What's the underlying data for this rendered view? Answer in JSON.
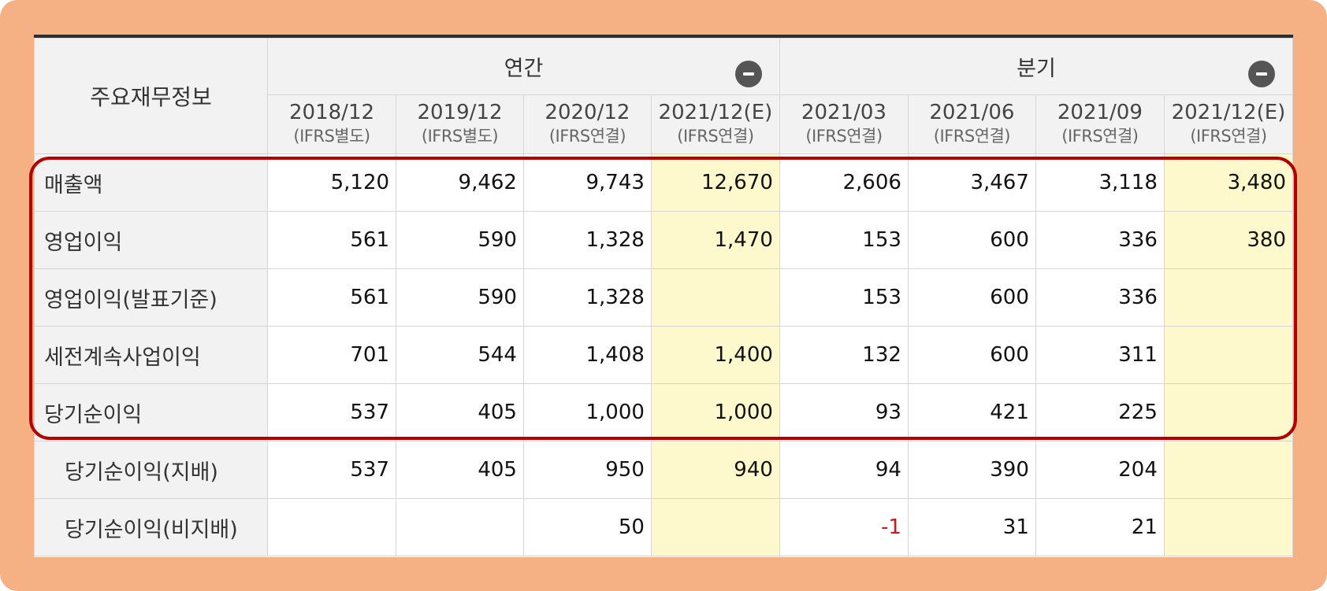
{
  "table": {
    "corner_label": "주요재무정보",
    "groups": [
      {
        "label": "연간"
      },
      {
        "label": "분기"
      }
    ],
    "periods": [
      {
        "period": "2018/12",
        "basis": "(IFRS별도)"
      },
      {
        "period": "2019/12",
        "basis": "(IFRS별도)"
      },
      {
        "period": "2020/12",
        "basis": "(IFRS연결)"
      },
      {
        "period": "2021/12(E)",
        "basis": "(IFRS연결)"
      },
      {
        "period": "2021/03",
        "basis": "(IFRS연결)"
      },
      {
        "period": "2021/06",
        "basis": "(IFRS연결)"
      },
      {
        "period": "2021/09",
        "basis": "(IFRS연결)"
      },
      {
        "period": "2021/12(E)",
        "basis": "(IFRS연결)"
      }
    ],
    "rows": [
      {
        "label": "매출액",
        "values": [
          "5,120",
          "9,462",
          "9,743",
          "12,670",
          "2,606",
          "3,467",
          "3,118",
          "3,480"
        ]
      },
      {
        "label": "영업이익",
        "values": [
          "561",
          "590",
          "1,328",
          "1,470",
          "153",
          "600",
          "336",
          "380"
        ]
      },
      {
        "label": "영업이익(발표기준)",
        "values": [
          "561",
          "590",
          "1,328",
          "",
          "153",
          "600",
          "336",
          ""
        ]
      },
      {
        "label": "세전계속사업이익",
        "values": [
          "701",
          "544",
          "1,408",
          "1,400",
          "132",
          "600",
          "311",
          ""
        ]
      },
      {
        "label": "당기순이익",
        "values": [
          "537",
          "405",
          "1,000",
          "1,000",
          "93",
          "421",
          "225",
          ""
        ]
      },
      {
        "label": "당기순이익(지배)",
        "values": [
          "537",
          "405",
          "950",
          "940",
          "94",
          "390",
          "204",
          ""
        ]
      },
      {
        "label": "당기순이익(비지배)",
        "values": [
          "",
          "",
          "50",
          "",
          "-1",
          "31",
          "21",
          ""
        ]
      }
    ]
  },
  "colors": {
    "frame": "#f5b083",
    "estimate_bg": "#fdf9cc",
    "highlight_border": "#b30000",
    "negative": "#d11111"
  }
}
